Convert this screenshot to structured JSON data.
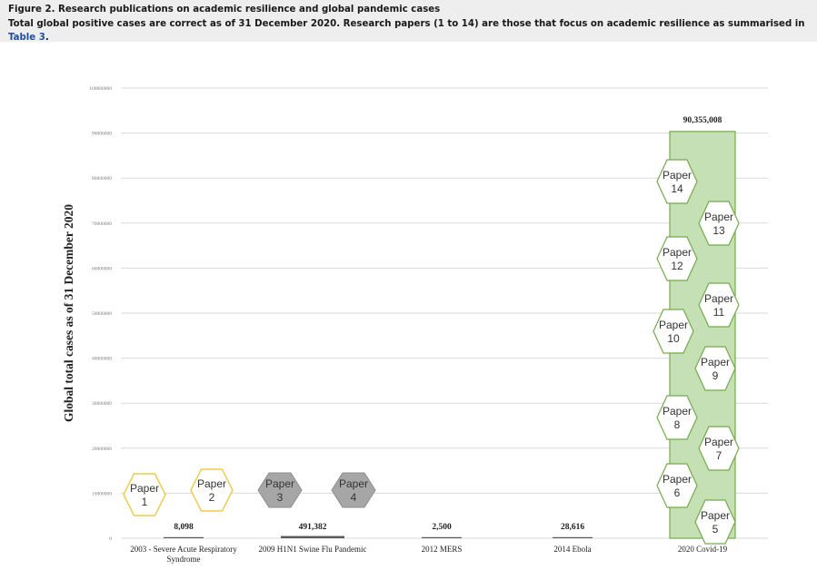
{
  "caption": {
    "figure_title": "Figure 2. Research publications on academic resilience and global pandemic cases",
    "note_before_link": "Total global positive cases are correct as of 31 December 2020. Research papers (1 to 14) are those that focus on academic resilience as summarised in ",
    "link_text": "Table 3",
    "note_after_link": "."
  },
  "colors": {
    "grid": "#d9d9d9",
    "covid_bar_fill": "#c5e0b4",
    "covid_bar_stroke": "#70ad47",
    "sars_hex_stroke": "#f5c842",
    "h1n1_hex_fill": "#a6a6a6",
    "paper_hex_fill": "#ffffff"
  },
  "chart_data": {
    "type": "bar",
    "ylabel": "Global total cases as of 31 December 2020",
    "xlabel": "",
    "ylim": [
      0,
      100000000
    ],
    "yticks": [
      "0",
      "10000000",
      "20000000",
      "30000000",
      "40000000",
      "50000000",
      "60000000",
      "70000000",
      "80000000",
      "90000000",
      "100000000"
    ],
    "grid": true,
    "categories": [
      "2003 - Severe Acute Respiratory Syndrome",
      "2009 H1N1 Swine Flu Pandemic",
      "2012 MERS",
      "2014 Ebola",
      "2020 Covid-19"
    ],
    "values": [
      8098,
      491382,
      2500,
      28616,
      90355008
    ],
    "value_labels": [
      "8,098",
      "491,382",
      "2,500",
      "28,616",
      "90,355,008"
    ],
    "papers": [
      {
        "label": "Paper",
        "number": "1",
        "category": "2003 - Severe Acute Respiratory Syndrome"
      },
      {
        "label": "Paper",
        "number": "2",
        "category": "2003 - Severe Acute Respiratory Syndrome"
      },
      {
        "label": "Paper",
        "number": "3",
        "category": "2009 H1N1 Swine Flu Pandemic"
      },
      {
        "label": "Paper",
        "number": "4",
        "category": "2009 H1N1 Swine Flu Pandemic"
      },
      {
        "label": "Paper",
        "number": "5",
        "category": "2020 Covid-19"
      },
      {
        "label": "Paper",
        "number": "6",
        "category": "2020 Covid-19"
      },
      {
        "label": "Paper",
        "number": "7",
        "category": "2020 Covid-19"
      },
      {
        "label": "Paper",
        "number": "8",
        "category": "2020 Covid-19"
      },
      {
        "label": "Paper",
        "number": "9",
        "category": "2020 Covid-19"
      },
      {
        "label": "Paper",
        "number": "10",
        "category": "2020 Covid-19"
      },
      {
        "label": "Paper",
        "number": "11",
        "category": "2020 Covid-19"
      },
      {
        "label": "Paper",
        "number": "12",
        "category": "2020 Covid-19"
      },
      {
        "label": "Paper",
        "number": "13",
        "category": "2020 Covid-19"
      },
      {
        "label": "Paper",
        "number": "14",
        "category": "2020 Covid-19"
      }
    ]
  }
}
